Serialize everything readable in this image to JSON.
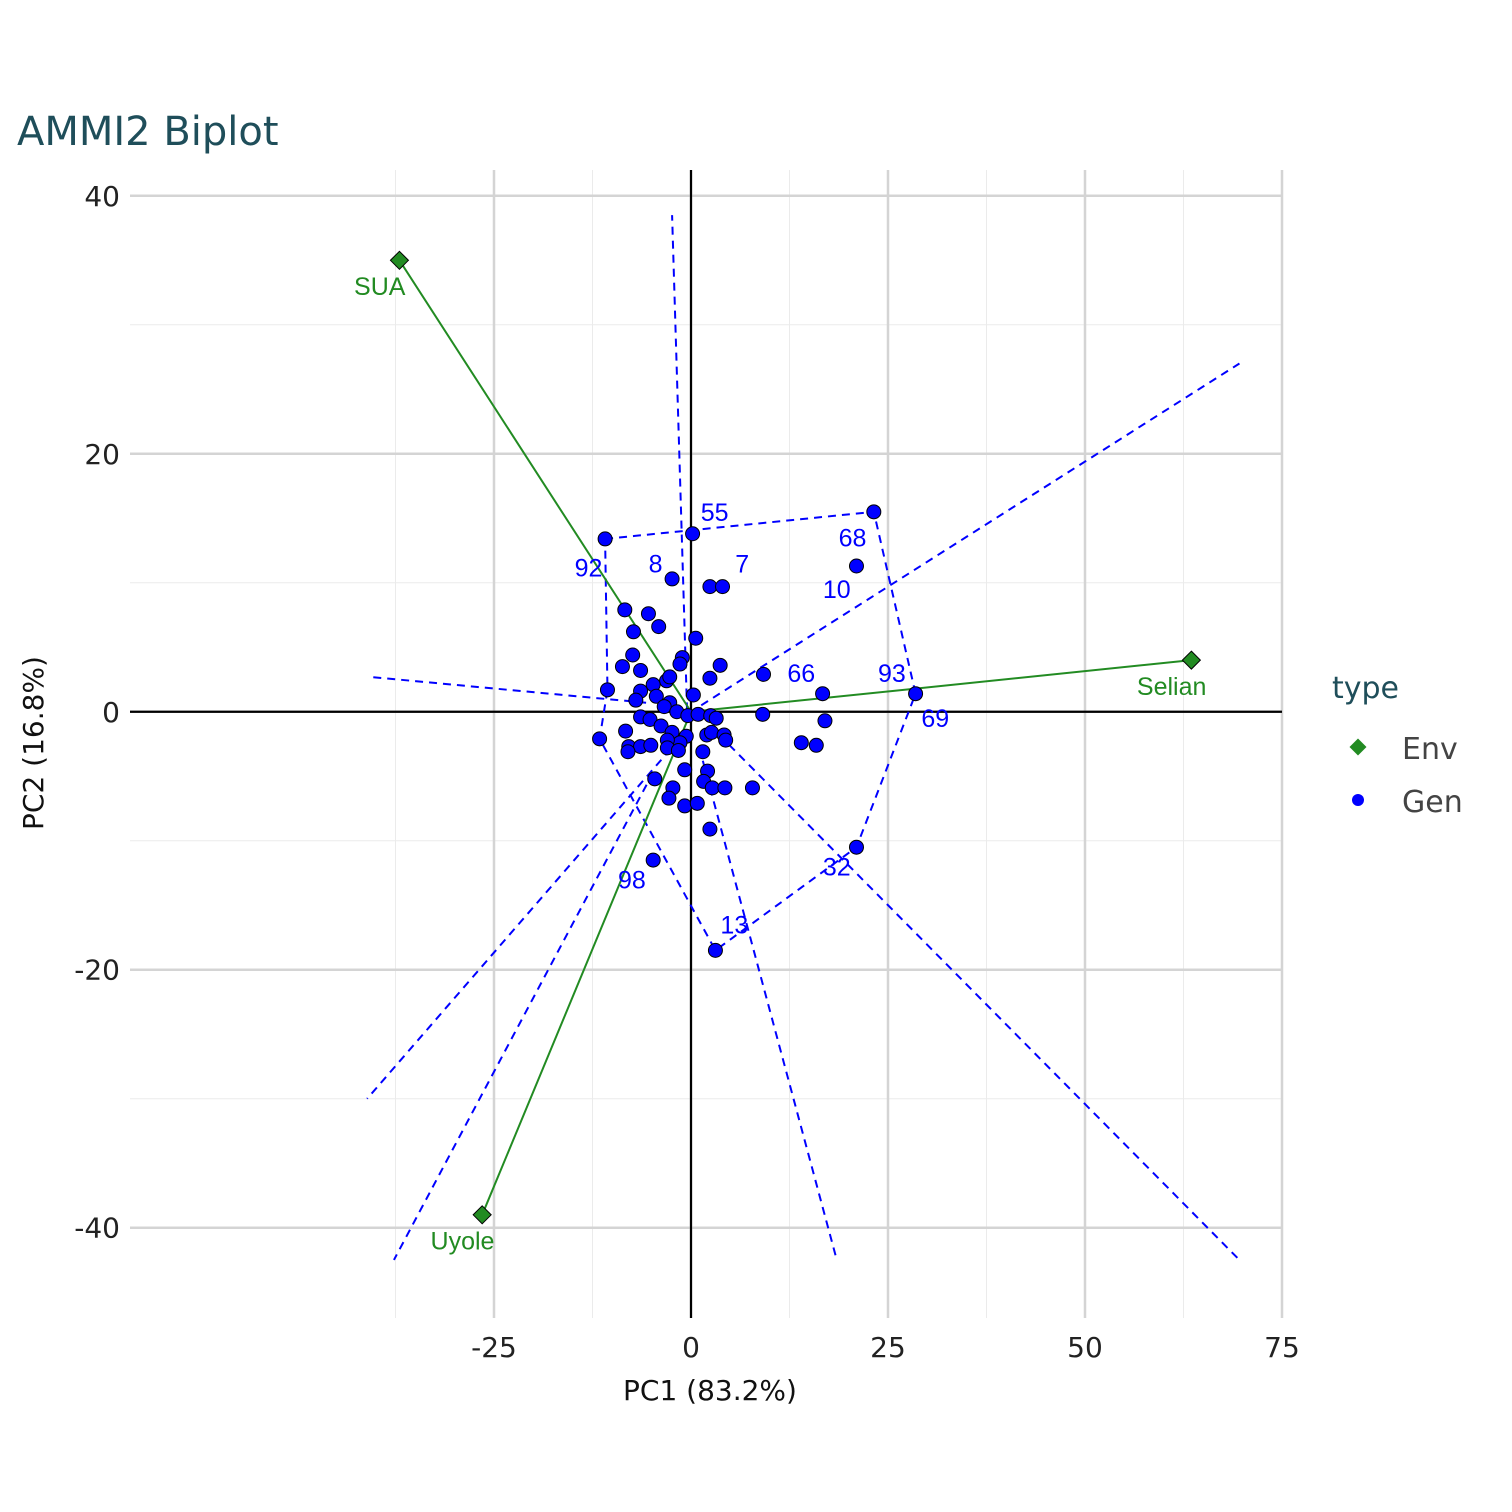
{
  "chart_data": {
    "type": "scatter",
    "title": "AMMI2 Biplot",
    "xlabel": "PC1 (83.2%)",
    "ylabel": "PC2 (16.8%)",
    "xlim": [
      -75,
      75
    ],
    "ylim": [
      -47,
      42
    ],
    "x_ticks": [
      -25,
      0,
      25,
      50,
      75
    ],
    "y_ticks": [
      40,
      20,
      0,
      -20,
      -40
    ],
    "grid": true,
    "legend": {
      "title": "type",
      "position": "right",
      "entries": [
        {
          "label": "Env",
          "shape": "diamond",
          "color": "#228b22"
        },
        {
          "label": "Gen",
          "shape": "circle",
          "color": "#0000ff"
        }
      ]
    },
    "colors": {
      "env": "#228b22",
      "gen": "#0000ff",
      "hull": "#0000ff",
      "axis_zero": "#000000"
    },
    "environments": [
      {
        "name": "SUA",
        "x": -37,
        "y": 35,
        "label_dx": -2.5,
        "label_dy": -2
      },
      {
        "name": "Selian",
        "x": 63.5,
        "y": 4,
        "label_dx": -2.5,
        "label_dy": -2
      },
      {
        "name": "Uyole",
        "x": -26.5,
        "y": -39,
        "label_dx": -2.5,
        "label_dy": -2
      }
    ],
    "genotype_labels": [
      {
        "id": "55",
        "x": 3,
        "y": 15.5
      },
      {
        "id": "68",
        "x": 20.5,
        "y": 13.5
      },
      {
        "id": "8",
        "x": -4.5,
        "y": 11.5
      },
      {
        "id": "7",
        "x": 6.5,
        "y": 11.5
      },
      {
        "id": "92",
        "x": -13,
        "y": 11.2
      },
      {
        "id": "10",
        "x": 18.5,
        "y": 9.5
      },
      {
        "id": "66",
        "x": 14,
        "y": 3
      },
      {
        "id": "93",
        "x": 25.5,
        "y": 3
      },
      {
        "id": "69",
        "x": 31,
        "y": -0.5
      },
      {
        "id": "32",
        "x": 18.5,
        "y": -12
      },
      {
        "id": "98",
        "x": -7.5,
        "y": -13
      },
      {
        "id": "13",
        "x": 5.5,
        "y": -16.5
      }
    ],
    "genotypes": [
      [
        0.2,
        13.8
      ],
      [
        23.2,
        15.5
      ],
      [
        -2.4,
        10.3
      ],
      [
        2.4,
        9.7
      ],
      [
        4,
        9.7
      ],
      [
        21,
        11.3
      ],
      [
        -10.9,
        13.4
      ],
      [
        -8.4,
        7.9
      ],
      [
        -5.4,
        7.6
      ],
      [
        -4.1,
        6.6
      ],
      [
        -7.3,
        6.2
      ],
      [
        0.6,
        5.7
      ],
      [
        -1.1,
        4.2
      ],
      [
        -1.4,
        3.7
      ],
      [
        -7.4,
        4.4
      ],
      [
        -8.7,
        3.5
      ],
      [
        -6.4,
        3.2
      ],
      [
        -3.1,
        2.4
      ],
      [
        -2.7,
        2.7
      ],
      [
        9.2,
        2.9
      ],
      [
        3.7,
        3.6
      ],
      [
        2.4,
        2.6
      ],
      [
        16.7,
        1.4
      ],
      [
        28.5,
        1.4
      ],
      [
        -10.6,
        1.7
      ],
      [
        -6.4,
        1.6
      ],
      [
        -4.8,
        2.1
      ],
      [
        -4.4,
        1.2
      ],
      [
        -7,
        0.9
      ],
      [
        0.3,
        1.3
      ],
      [
        -2.7,
        0.7
      ],
      [
        -3.4,
        0.4
      ],
      [
        -1.8,
        0
      ],
      [
        -0.4,
        -0.3
      ],
      [
        0.9,
        -0.2
      ],
      [
        2.5,
        -0.3
      ],
      [
        3.2,
        -0.5
      ],
      [
        9.1,
        -0.2
      ],
      [
        -6.4,
        -0.4
      ],
      [
        -5.2,
        -0.6
      ],
      [
        -3.8,
        -1.1
      ],
      [
        -2.4,
        -1.6
      ],
      [
        -0.6,
        -1.9
      ],
      [
        -1.4,
        -2.4
      ],
      [
        -3,
        -2.2
      ],
      [
        2,
        -1.8
      ],
      [
        2.6,
        -1.6
      ],
      [
        4.2,
        -1.8
      ],
      [
        4.4,
        -2.2
      ],
      [
        14,
        -2.4
      ],
      [
        15.9,
        -2.6
      ],
      [
        17,
        -0.7
      ],
      [
        -8.3,
        -1.5
      ],
      [
        -7.9,
        -2.7
      ],
      [
        -6.4,
        -2.7
      ],
      [
        -5.1,
        -2.6
      ],
      [
        -3,
        -2.8
      ],
      [
        -11.6,
        -2.1
      ],
      [
        -8,
        -3.1
      ],
      [
        -1.6,
        -3
      ],
      [
        1.5,
        -3.1
      ],
      [
        -0.8,
        -4.5
      ],
      [
        2.1,
        -4.6
      ],
      [
        1.6,
        -5.4
      ],
      [
        -4.6,
        -5.2
      ],
      [
        -2.3,
        -5.9
      ],
      [
        2.7,
        -5.9
      ],
      [
        4.3,
        -5.9
      ],
      [
        7.8,
        -5.9
      ],
      [
        -2.8,
        -6.7
      ],
      [
        -0.8,
        -7.3
      ],
      [
        0.8,
        -7.1
      ],
      [
        -4.8,
        -11.5
      ],
      [
        2.4,
        -9.1
      ],
      [
        21,
        -10.5
      ],
      [
        3.1,
        -18.5
      ]
    ],
    "hull": [
      [
        -10.9,
        13.4
      ],
      [
        23.2,
        15.5
      ],
      [
        28.5,
        1.4
      ],
      [
        21,
        -10.5
      ],
      [
        3.1,
        -18.5
      ],
      [
        -11.6,
        -2.1
      ],
      [
        -10.6,
        1.7
      ],
      [
        -10.9,
        13.4
      ]
    ],
    "sector_rays": [
      [
        [
          -0.5,
          0.1
        ],
        [
          -2.4,
          38.5
        ]
      ],
      [
        [
          1.3,
          0.5
        ],
        [
          69.6,
          27
        ]
      ],
      [
        [
          3.6,
          -1.8
        ],
        [
          69.6,
          -42.5
        ]
      ],
      [
        [
          1.5,
          -3.8
        ],
        [
          18.5,
          -42.5
        ]
      ],
      [
        [
          -2.6,
          -2.9
        ],
        [
          -41.1,
          -30
        ]
      ],
      [
        [
          -4.8,
          -4.7
        ],
        [
          -37.7,
          -42.5
        ]
      ],
      [
        [
          -5.7,
          0.7
        ],
        [
          -40.7,
          2.7
        ]
      ]
    ]
  }
}
